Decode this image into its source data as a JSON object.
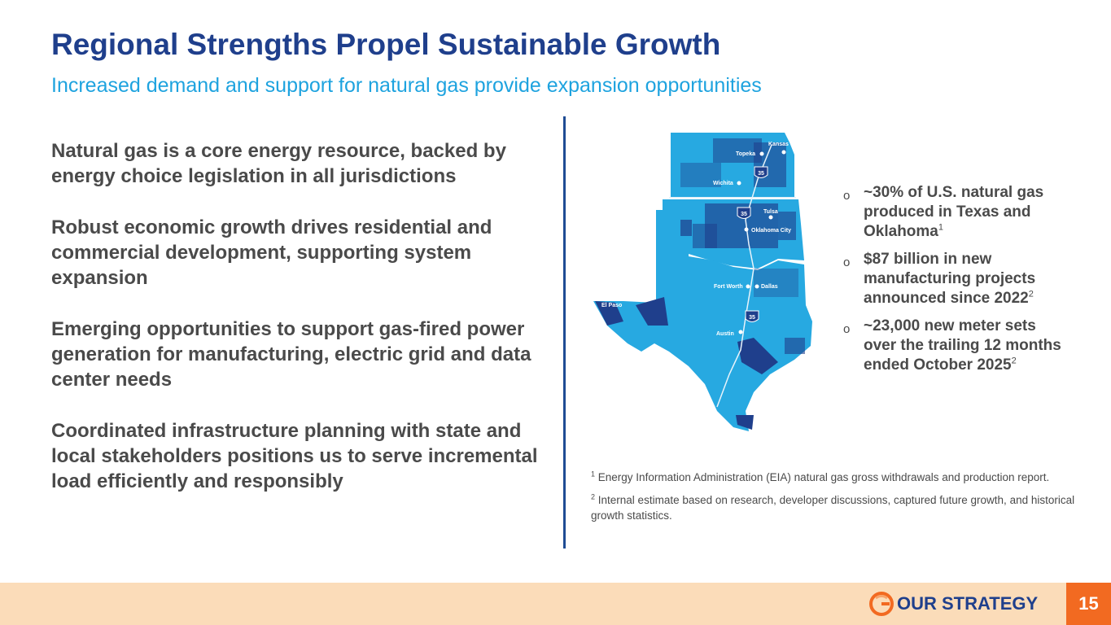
{
  "header": {
    "title": "Regional Strengths Propel Sustainable Growth",
    "subtitle": "Increased demand and support for natural gas provide expansion opportunities"
  },
  "left_points": [
    "Natural gas is a core energy resource, backed by energy choice legislation in all jurisdictions",
    "Robust economic growth drives residential and commercial development, supporting system expansion",
    "Emerging opportunities to support gas-fired power generation for manufacturing, electric grid and data center needs",
    "Coordinated infrastructure planning with state and local stakeholders positions us to serve incremental load efficiently and responsibly"
  ],
  "map": {
    "cities": [
      "Kansas City",
      "Topeka",
      "Wichita",
      "Tulsa",
      "Oklahoma City",
      "Fort Worth",
      "Dallas",
      "El Paso",
      "Austin"
    ],
    "highway": "35",
    "colors": {
      "region": "#27a9e1",
      "service": "#1f3f8c",
      "highway_shield": "#1f3f8c"
    }
  },
  "bullets": [
    {
      "marker": "o",
      "text": "~30% of U.S. natural gas produced in Texas and Oklahoma",
      "sup": "1"
    },
    {
      "marker": "o",
      "text": "$87 billion in new manufacturing projects announced since 2022",
      "sup": "2"
    },
    {
      "marker": "o",
      "text": "~23,000 new meter sets over the trailing 12 months ended October 2025",
      "sup": "2"
    }
  ],
  "footnotes": [
    {
      "num": "1",
      "text": "Energy Information Administration (EIA) natural gas gross withdrawals and production report."
    },
    {
      "num": "2",
      "text": "Internal estimate based on research, developer discussions, captured future growth, and historical growth statistics."
    }
  ],
  "footer": {
    "section": "OUR STRATEGY",
    "page": "15",
    "colors": {
      "band": "#fbdcb9",
      "page_box": "#f26a21",
      "text": "#1f3f8c"
    }
  }
}
